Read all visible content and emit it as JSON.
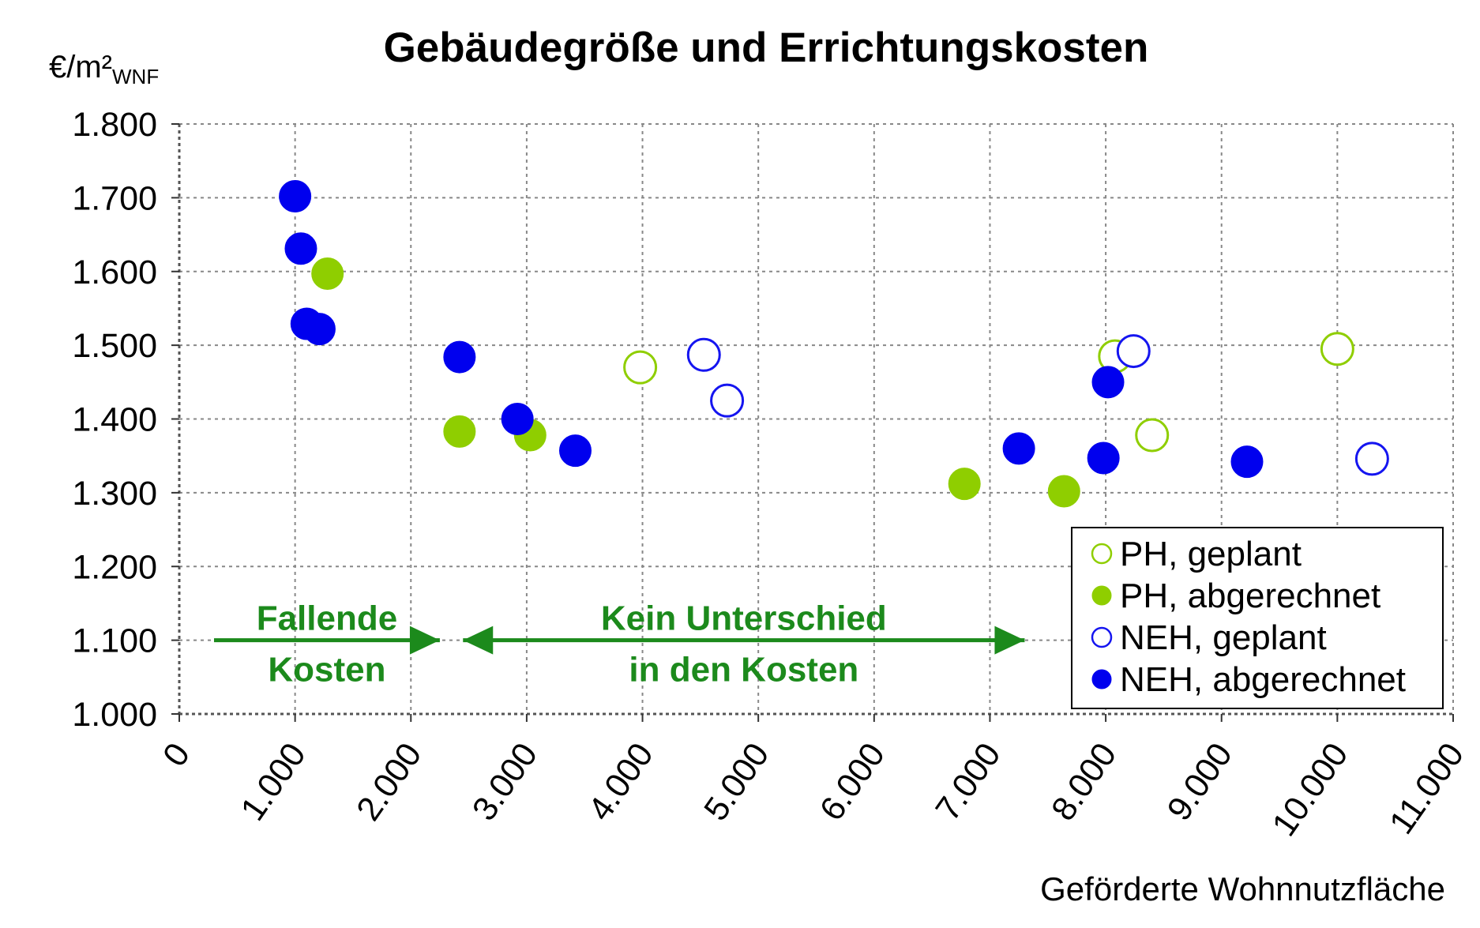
{
  "chart_data": {
    "type": "scatter",
    "title": "Gebäudegröße und Errichtungskosten",
    "ylabel": "€/m²",
    "ylabel_sub": "WNF",
    "xlabel": "Geförderte Wohnnutzfläche",
    "xlim": [
      0,
      11000
    ],
    "ylim": [
      1000,
      1800
    ],
    "x_ticks": [
      "0",
      "1.000",
      "2.000",
      "3.000",
      "4.000",
      "5.000",
      "6.000",
      "7.000",
      "8.000",
      "9.000",
      "10.000",
      "11.000"
    ],
    "y_ticks": [
      "1.000",
      "1.100",
      "1.200",
      "1.300",
      "1.400",
      "1.500",
      "1.600",
      "1.700",
      "1.800"
    ],
    "grid": true,
    "legend_position": "bottom-right",
    "series": [
      {
        "name": "PH, geplant",
        "color": "#8fce00",
        "filled": false,
        "points": [
          [
            3980,
            1470
          ],
          [
            8080,
            1485
          ],
          [
            8400,
            1378
          ],
          [
            10000,
            1495
          ]
        ]
      },
      {
        "name": "PH, abgerechnet",
        "color": "#8fce00",
        "filled": true,
        "points": [
          [
            1280,
            1597
          ],
          [
            2420,
            1383
          ],
          [
            3030,
            1378
          ],
          [
            6780,
            1312
          ],
          [
            7640,
            1302
          ]
        ]
      },
      {
        "name": "NEH, geplant",
        "color": "#1515f0",
        "filled": false,
        "points": [
          [
            4530,
            1487
          ],
          [
            4730,
            1425
          ],
          [
            8240,
            1492
          ],
          [
            10300,
            1346
          ]
        ]
      },
      {
        "name": "NEH, abgerechnet",
        "color": "#0000ee",
        "filled": true,
        "points": [
          [
            1000,
            1702
          ],
          [
            1050,
            1631
          ],
          [
            1100,
            1529
          ],
          [
            1210,
            1522
          ],
          [
            2420,
            1484
          ],
          [
            2920,
            1400
          ],
          [
            3420,
            1357
          ],
          [
            7250,
            1360
          ],
          [
            7980,
            1347
          ],
          [
            8020,
            1450
          ],
          [
            9220,
            1342
          ]
        ]
      }
    ],
    "annotations": [
      {
        "lines": [
          "Fallende",
          "Kosten"
        ],
        "arrow": "right",
        "from": 300,
        "to": 2250,
        "y": 1100
      },
      {
        "lines": [
          "Kein Unterschied",
          "in den Kosten"
        ],
        "arrow": "both",
        "from": 2450,
        "to": 7300,
        "y": 1100
      }
    ]
  }
}
